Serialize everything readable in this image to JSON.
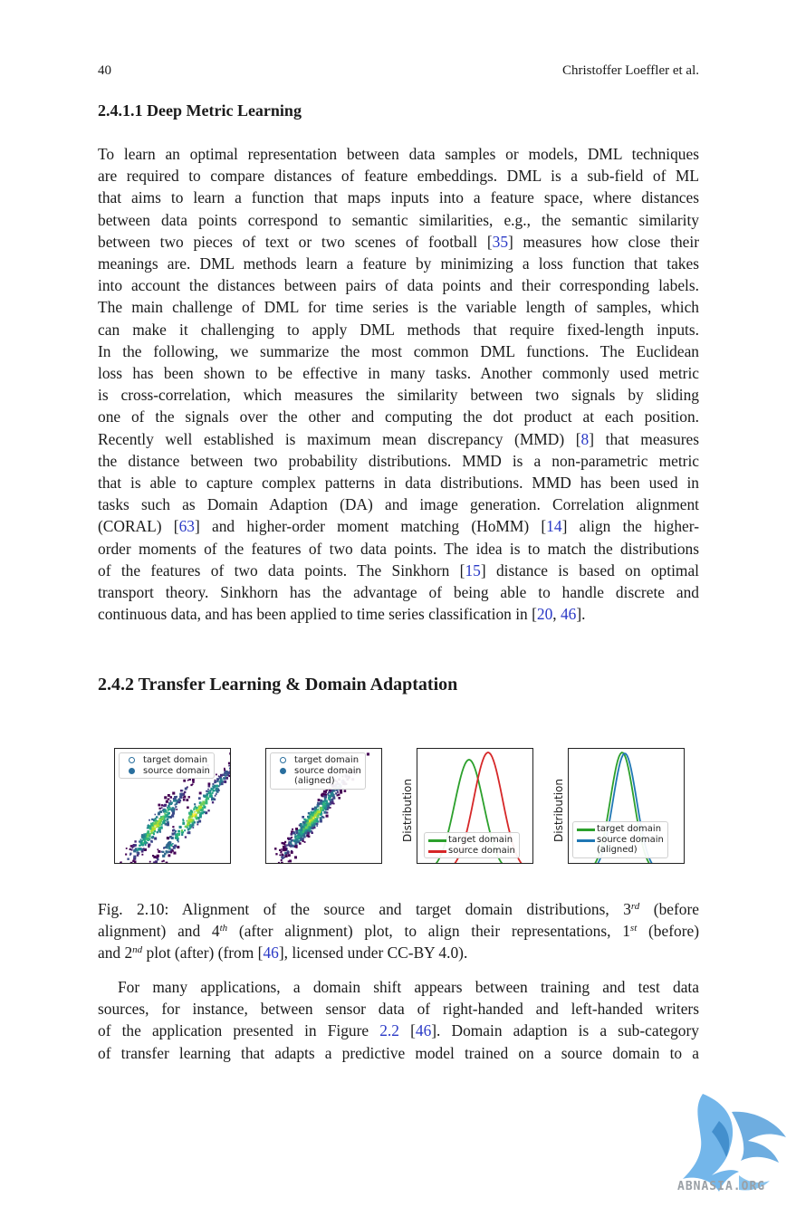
{
  "header": {
    "page_number": "40",
    "author": "Christoffer Loeffler et al."
  },
  "section_441": {
    "title": "2.4.1.1  Deep Metric Learning"
  },
  "paragraph1": {
    "l1": "To learn an optimal representation between data samples or models, DML techniques",
    "l2": "are required to compare distances of feature embeddings. DML is a sub-field of ML",
    "l3": "that aims to learn a function that maps inputs into a feature space, where distances",
    "l4": "between data points correspond to semantic similarities, e.g., the semantic similarity",
    "l5a": "between two pieces of text or two scenes of football [",
    "l5ref": "35",
    "l5b": "] measures how close their",
    "l6": "meanings are. DML methods learn a feature by minimizing a loss function that takes",
    "l7": "into account the distances between pairs of data points and their corresponding labels.",
    "l8": "The main challenge of DML for time series is the variable length of samples, which",
    "l9": "can make it challenging to apply DML methods that require fixed-length inputs.",
    "l10": "In the following, we summarize the most common DML functions. The Euclidean",
    "l11": "loss has been shown to be effective in many tasks. Another commonly used metric",
    "l12": "is cross-correlation, which measures the similarity between two signals by sliding",
    "l13": "one of the signals over the other and computing the dot product at each position.",
    "l14a": "Recently well established is maximum mean discrepancy (MMD) [",
    "l14ref": "8",
    "l14b": "] that measures",
    "l15": "the distance between two probability distributions. MMD is a non-parametric metric",
    "l16": "that is able to capture complex patterns in data distributions. MMD has been used in",
    "l17": "tasks such as Domain Adaption (DA) and image generation. Correlation alignment",
    "l18a": "(CORAL) [",
    "l18ref1": "63",
    "l18b": "] and higher-order moment matching (HoMM) [",
    "l18ref2": "14",
    "l18c": "] align the higher-",
    "l19": "order moments of the features of two data points. The idea is to match the distributions",
    "l20a": "of the features of two data points. The Sinkhorn [",
    "l20ref": "15",
    "l20b": "] distance is based on optimal",
    "l21": "transport theory. Sinkhorn has the advantage of being able to handle discrete and",
    "l22a": "continuous data, and has been applied to time series classification in [",
    "l22ref1": "20",
    "l22sep": ", ",
    "l22ref2": "46",
    "l22b": "]."
  },
  "section_242": {
    "title": "2.4.2  Transfer Learning & Domain Adaptation"
  },
  "figure": {
    "panel1": {
      "legend": [
        "target domain",
        "source domain"
      ]
    },
    "panel2": {
      "legend": [
        "target domain",
        "source domain",
        "(aligned)"
      ]
    },
    "panel3": {
      "ylabel": "Distribution",
      "legend": [
        "target domain",
        "source domain"
      ]
    },
    "panel4": {
      "ylabel": "Distribution",
      "legend": [
        "target domain",
        "source domain",
        "(aligned)"
      ]
    },
    "colors": {
      "target": "#2ca02c",
      "source_before": "#d62728",
      "source_aligned": "#1f77b4"
    }
  },
  "caption": {
    "l1a": "Fig. 2.10: Alignment of the source and target domain distributions, 3",
    "l1sup": "rd",
    "l1b": " (before",
    "l2a": "alignment) and 4",
    "l2sup1": "th",
    "l2b": " (after alignment) plot, to align their representations, 1",
    "l2sup2": "st",
    "l2c": " (before)",
    "l3a": "and 2",
    "l3sup": "nd",
    "l3b": " plot (after) (from [",
    "l3ref": "46",
    "l3c": "], licensed under CC-BY 4.0)."
  },
  "paragraph2": {
    "l1": "For many applications, a domain shift appears between training and test data",
    "l2": "sources, for instance, between sensor data of right-handed and left-handed writers",
    "l3a": "of the application presented in Figure ",
    "l3ref1": "2.2",
    "l3sep": " [",
    "l3ref2": "46",
    "l3b": "]. Domain adaption is a sub-category",
    "l4": "of transfer learning that adapts a predictive model trained on a source domain to a"
  },
  "watermark": {
    "text": "ABNASIA.ORG",
    "icon": "dragon-logo-icon"
  }
}
